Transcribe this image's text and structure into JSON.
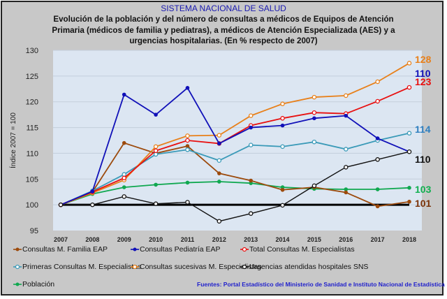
{
  "chart_data": {
    "type": "line",
    "title": "SISTEMA NACIONAL DE SALUD",
    "subtitle_lines": [
      "Evolución de la población y del número de consultas a médicos de Equipos de Atención",
      "Primaria (médicos de familia y pediatras), a médicos de Atención Especializada (AES) y a",
      "urgencias hospitalarias. (En % respecto de 2007)"
    ],
    "xlabel": "",
    "ylabel": "Índice 2007 = 100",
    "x": [
      "2007",
      "2008",
      "2009",
      "2010",
      "2011",
      "2012",
      "2013",
      "2014",
      "2015",
      "2016",
      "2017",
      "2018"
    ],
    "ylim": [
      95,
      130
    ],
    "yticks": [
      95,
      100,
      105,
      110,
      115,
      120,
      125,
      130
    ],
    "grid": true,
    "reference_line": 100,
    "legend_position": "bottom",
    "series": [
      {
        "name": "Consultas M. Familia EAP",
        "color": "#9c4a0c",
        "marker": "filled",
        "end_label": "101",
        "end_label_color": "#7a3208",
        "values": [
          100,
          102.5,
          112.0,
          110.0,
          111.4,
          106.1,
          104.7,
          102.9,
          103.4,
          102.4,
          99.7,
          100.6
        ]
      },
      {
        "name": "Consultas Pediatría EAP",
        "color": "#1010b8",
        "marker": "filled",
        "end_label": "110",
        "end_label_color": "#1010b8",
        "values": [
          100,
          102.6,
          121.4,
          117.5,
          122.7,
          111.9,
          115.0,
          115.4,
          116.8,
          117.3,
          112.9,
          110.3
        ]
      },
      {
        "name": "Total Consultas M. Especialistas",
        "color": "#e81010",
        "marker": "open",
        "end_label": "123",
        "end_label_color": "#e81010",
        "values": [
          100,
          102.5,
          105.2,
          110.5,
          112.5,
          111.9,
          115.4,
          116.8,
          117.9,
          117.7,
          120.1,
          122.8
        ]
      },
      {
        "name": "Primeras Consultas M. Especialistas",
        "color": "#3a9ab8",
        "marker": "open",
        "end_label": "114",
        "end_label_color": "#2e7fc0",
        "values": [
          100,
          102.7,
          105.9,
          109.8,
          110.7,
          108.6,
          111.6,
          111.3,
          112.2,
          110.8,
          112.5,
          113.9
        ]
      },
      {
        "name": "Consultas sucesivas M. Especialistas",
        "color": "#e8801a",
        "marker": "open",
        "end_label": "128",
        "end_label_color": "#e8801a",
        "values": [
          100,
          102.3,
          104.8,
          111.3,
          113.4,
          113.5,
          117.3,
          119.6,
          120.9,
          121.2,
          123.9,
          127.5
        ]
      },
      {
        "name": "Urgencias atendidas hospitales SNS",
        "color": "#111111",
        "marker": "open",
        "end_label": "110",
        "end_label_color": "#111111",
        "values": [
          100,
          100.0,
          101.6,
          100.2,
          100.5,
          96.8,
          98.3,
          99.9,
          103.7,
          107.3,
          108.8,
          110.3
        ]
      },
      {
        "name": "Población",
        "color": "#10a850",
        "marker": "filled",
        "end_label": "103",
        "end_label_color": "#10b050",
        "values": [
          100,
          102.1,
          103.4,
          103.9,
          104.3,
          104.5,
          104.2,
          103.4,
          103.1,
          103.0,
          103.0,
          103.3
        ]
      }
    ],
    "source": "Fuentes: Portal Estadístico del Ministerio de Sanidad e Instituto Nacional de Estadística"
  }
}
